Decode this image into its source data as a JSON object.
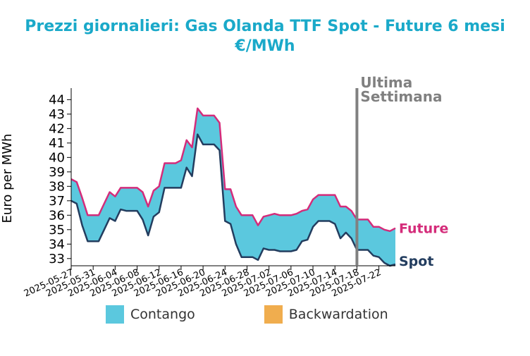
{
  "chart_data": {
    "type": "area",
    "title_line1": "Prezzi giornalieri: Gas Olanda TTF Spot - Future 6 mesi",
    "title_line2": "€/MWh",
    "ylabel": "Euro per MWh",
    "ylim": [
      32.5,
      44.8
    ],
    "yticks": [
      33,
      34,
      35,
      36,
      37,
      38,
      39,
      40,
      41,
      42,
      43,
      44
    ],
    "x_tick_labels": [
      "2025-05-27",
      "2025-05-31",
      "2025-06-04",
      "2025-06-08",
      "2025-06-12",
      "2025-06-16",
      "2025-06-20",
      "2025-06-24",
      "2025-06-28",
      "2025-07-02",
      "2025-07-06",
      "2025-07-10",
      "2025-07-14",
      "2025-07-18",
      "2025-07-22"
    ],
    "x_start": "2025-05-27",
    "x_end": "2025-07-25",
    "marker_date": "2025-07-18",
    "marker_label_line1": "Ultima",
    "marker_label_line2": "Settimana",
    "marker_color": "#808080",
    "series": [
      {
        "name": "Future",
        "color": "#d42c7a",
        "points": [
          [
            "2025-05-27",
            38.5
          ],
          [
            "2025-05-28",
            38.3
          ],
          [
            "2025-05-29",
            37.2
          ],
          [
            "2025-05-30",
            36.0
          ],
          [
            "2025-05-31",
            36.0
          ],
          [
            "2025-06-01",
            36.0
          ],
          [
            "2025-06-02",
            36.8
          ],
          [
            "2025-06-03",
            37.6
          ],
          [
            "2025-06-04",
            37.3
          ],
          [
            "2025-06-05",
            37.9
          ],
          [
            "2025-06-06",
            37.9
          ],
          [
            "2025-06-07",
            37.9
          ],
          [
            "2025-06-08",
            37.9
          ],
          [
            "2025-06-09",
            37.6
          ],
          [
            "2025-06-10",
            36.6
          ],
          [
            "2025-06-11",
            37.7
          ],
          [
            "2025-06-12",
            38.0
          ],
          [
            "2025-06-13",
            39.6
          ],
          [
            "2025-06-14",
            39.6
          ],
          [
            "2025-06-15",
            39.6
          ],
          [
            "2025-06-16",
            39.8
          ],
          [
            "2025-06-17",
            41.2
          ],
          [
            "2025-06-18",
            40.7
          ],
          [
            "2025-06-19",
            43.4
          ],
          [
            "2025-06-20",
            42.9
          ],
          [
            "2025-06-21",
            42.9
          ],
          [
            "2025-06-22",
            42.9
          ],
          [
            "2025-06-23",
            42.4
          ],
          [
            "2025-06-24",
            37.8
          ],
          [
            "2025-06-25",
            37.8
          ],
          [
            "2025-06-26",
            36.6
          ],
          [
            "2025-06-27",
            36.0
          ],
          [
            "2025-06-28",
            36.0
          ],
          [
            "2025-06-29",
            36.0
          ],
          [
            "2025-06-30",
            35.3
          ],
          [
            "2025-07-01",
            35.9
          ],
          [
            "2025-07-02",
            36.0
          ],
          [
            "2025-07-03",
            36.1
          ],
          [
            "2025-07-04",
            36.0
          ],
          [
            "2025-07-05",
            36.0
          ],
          [
            "2025-07-06",
            36.0
          ],
          [
            "2025-07-07",
            36.1
          ],
          [
            "2025-07-08",
            36.3
          ],
          [
            "2025-07-09",
            36.4
          ],
          [
            "2025-07-10",
            37.1
          ],
          [
            "2025-07-11",
            37.4
          ],
          [
            "2025-07-12",
            37.4
          ],
          [
            "2025-07-13",
            37.4
          ],
          [
            "2025-07-14",
            37.4
          ],
          [
            "2025-07-15",
            36.6
          ],
          [
            "2025-07-16",
            36.6
          ],
          [
            "2025-07-17",
            36.3
          ],
          [
            "2025-07-18",
            35.7
          ],
          [
            "2025-07-19",
            35.7
          ],
          [
            "2025-07-20",
            35.7
          ],
          [
            "2025-07-21",
            35.2
          ],
          [
            "2025-07-22",
            35.2
          ],
          [
            "2025-07-23",
            35.0
          ],
          [
            "2025-07-24",
            34.9
          ],
          [
            "2025-07-25",
            35.1
          ]
        ]
      },
      {
        "name": "Spot",
        "color": "#233d5f",
        "points": [
          [
            "2025-05-27",
            37.0
          ],
          [
            "2025-05-28",
            36.8
          ],
          [
            "2025-05-29",
            35.3
          ],
          [
            "2025-05-30",
            34.2
          ],
          [
            "2025-05-31",
            34.2
          ],
          [
            "2025-06-01",
            34.2
          ],
          [
            "2025-06-02",
            35.0
          ],
          [
            "2025-06-03",
            35.8
          ],
          [
            "2025-06-04",
            35.6
          ],
          [
            "2025-06-05",
            36.4
          ],
          [
            "2025-06-06",
            36.3
          ],
          [
            "2025-06-07",
            36.3
          ],
          [
            "2025-06-08",
            36.3
          ],
          [
            "2025-06-09",
            35.7
          ],
          [
            "2025-06-10",
            34.6
          ],
          [
            "2025-06-11",
            35.9
          ],
          [
            "2025-06-12",
            36.2
          ],
          [
            "2025-06-13",
            37.9
          ],
          [
            "2025-06-14",
            37.9
          ],
          [
            "2025-06-15",
            37.9
          ],
          [
            "2025-06-16",
            37.9
          ],
          [
            "2025-06-17",
            39.3
          ],
          [
            "2025-06-18",
            38.7
          ],
          [
            "2025-06-19",
            41.6
          ],
          [
            "2025-06-20",
            40.9
          ],
          [
            "2025-06-21",
            40.9
          ],
          [
            "2025-06-22",
            40.9
          ],
          [
            "2025-06-23",
            40.5
          ],
          [
            "2025-06-24",
            35.6
          ],
          [
            "2025-06-25",
            35.4
          ],
          [
            "2025-06-26",
            34.0
          ],
          [
            "2025-06-27",
            33.1
          ],
          [
            "2025-06-28",
            33.1
          ],
          [
            "2025-06-29",
            33.1
          ],
          [
            "2025-06-30",
            32.9
          ],
          [
            "2025-07-01",
            33.7
          ],
          [
            "2025-07-02",
            33.6
          ],
          [
            "2025-07-03",
            33.6
          ],
          [
            "2025-07-04",
            33.5
          ],
          [
            "2025-07-05",
            33.5
          ],
          [
            "2025-07-06",
            33.5
          ],
          [
            "2025-07-07",
            33.6
          ],
          [
            "2025-07-08",
            34.2
          ],
          [
            "2025-07-09",
            34.3
          ],
          [
            "2025-07-10",
            35.2
          ],
          [
            "2025-07-11",
            35.6
          ],
          [
            "2025-07-12",
            35.6
          ],
          [
            "2025-07-13",
            35.6
          ],
          [
            "2025-07-14",
            35.4
          ],
          [
            "2025-07-15",
            34.4
          ],
          [
            "2025-07-16",
            34.8
          ],
          [
            "2025-07-17",
            34.4
          ],
          [
            "2025-07-18",
            33.6
          ],
          [
            "2025-07-19",
            33.6
          ],
          [
            "2025-07-20",
            33.6
          ],
          [
            "2025-07-21",
            33.2
          ],
          [
            "2025-07-22",
            33.1
          ],
          [
            "2025-07-23",
            32.7
          ],
          [
            "2025-07-24",
            32.5
          ],
          [
            "2025-07-25",
            32.6
          ]
        ]
      }
    ],
    "fill_colors": {
      "contango": "#5bc8de",
      "backwardation": "#f0ad4e"
    },
    "legend": [
      {
        "label": "Contango",
        "color": "#5bc8de"
      },
      {
        "label": "Backwardation",
        "color": "#f0ad4e"
      }
    ],
    "legend_position": "bottom",
    "grid": false
  }
}
